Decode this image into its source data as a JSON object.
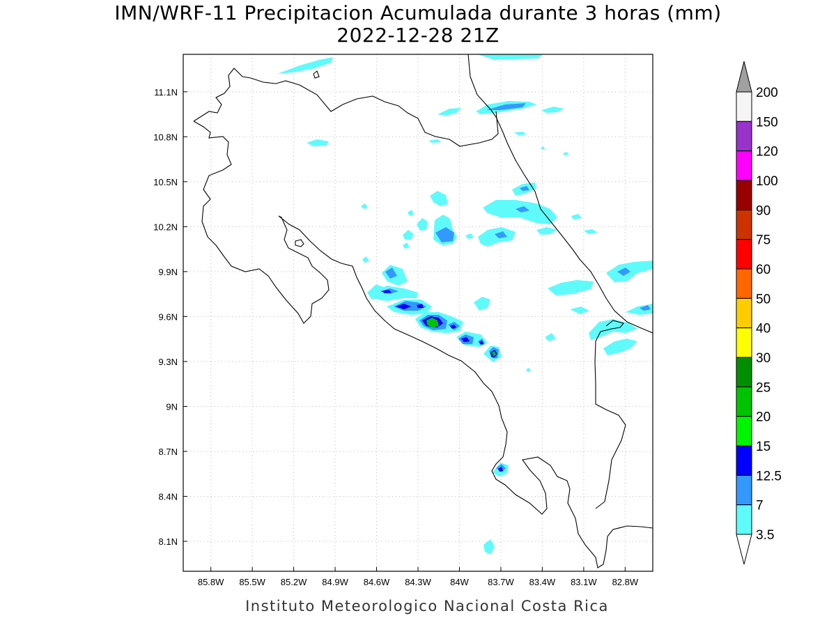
{
  "title": {
    "line1": "IMN/WRF-11 Precipitacion Acumulada durante 3 horas (mm)",
    "line2": "2022-12-28 21Z"
  },
  "footer": "Instituto Meteorologico Nacional Costa Rica",
  "map": {
    "lon_range": [
      -86.0,
      -82.6
    ],
    "lat_range": [
      7.9,
      11.35
    ],
    "x_ticks": [
      {
        "value": -85.8,
        "label": "85.8W"
      },
      {
        "value": -85.5,
        "label": "85.5W"
      },
      {
        "value": -85.2,
        "label": "85.2W"
      },
      {
        "value": -84.9,
        "label": "84.9W"
      },
      {
        "value": -84.6,
        "label": "84.6W"
      },
      {
        "value": -84.3,
        "label": "84.3W"
      },
      {
        "value": -84.0,
        "label": "84W"
      },
      {
        "value": -83.7,
        "label": "83.7W"
      },
      {
        "value": -83.4,
        "label": "83.4W"
      },
      {
        "value": -83.1,
        "label": "83.1W"
      },
      {
        "value": -82.8,
        "label": "82.8W"
      }
    ],
    "y_ticks": [
      {
        "value": 11.1,
        "label": "11.1N"
      },
      {
        "value": 10.8,
        "label": "10.8N"
      },
      {
        "value": 10.5,
        "label": "10.5N"
      },
      {
        "value": 10.2,
        "label": "10.2N"
      },
      {
        "value": 9.9,
        "label": "9.9N"
      },
      {
        "value": 9.6,
        "label": "9.6N"
      },
      {
        "value": 9.3,
        "label": "9.3N"
      },
      {
        "value": 9.0,
        "label": "9N"
      },
      {
        "value": 8.7,
        "label": "8.7N"
      },
      {
        "value": 8.4,
        "label": "8.4N"
      },
      {
        "value": 8.1,
        "label": "8.1N"
      }
    ],
    "grid": true
  },
  "legend": {
    "levels": [
      {
        "label": "3.5",
        "color": "#5ffbfb"
      },
      {
        "label": "7",
        "color": "#3399ff"
      },
      {
        "label": "12.5",
        "color": "#0000ff"
      },
      {
        "label": "15",
        "color": "#00f500"
      },
      {
        "label": "20",
        "color": "#00c300"
      },
      {
        "label": "25",
        "color": "#008f00"
      },
      {
        "label": "30",
        "color": "#ffff00"
      },
      {
        "label": "40",
        "color": "#ffcc00"
      },
      {
        "label": "50",
        "color": "#ff6600"
      },
      {
        "label": "60",
        "color": "#ff0000"
      },
      {
        "label": "75",
        "color": "#cc3300"
      },
      {
        "label": "90",
        "color": "#990000"
      },
      {
        "label": "100",
        "color": "#ff00ff"
      },
      {
        "label": "120",
        "color": "#9933cc"
      },
      {
        "label": "150",
        "color": "#f5f5f5"
      },
      {
        "label": "200",
        "color": "#a0a0a0"
      }
    ]
  }
}
